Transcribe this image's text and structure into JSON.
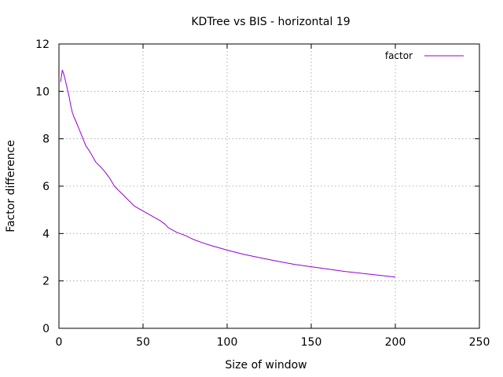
{
  "chart_data": {
    "type": "line",
    "title": "KDTree vs BIS - horizontal 19",
    "xlabel": "Size of window",
    "ylabel": "Factor difference",
    "xlim": [
      0,
      250
    ],
    "ylim": [
      0,
      12
    ],
    "xticks": [
      0,
      50,
      100,
      150,
      200,
      250
    ],
    "yticks": [
      0,
      2,
      4,
      6,
      8,
      10,
      12
    ],
    "xtick_labels": [
      "0",
      "50",
      "100",
      "150",
      "200",
      "250"
    ],
    "ytick_labels": [
      "0",
      "2",
      "4",
      "6",
      "8",
      "10",
      "12"
    ],
    "grid": true,
    "legend_position": "top-right",
    "series": [
      {
        "name": "factor",
        "color": "#9400d3",
        "x": [
          1,
          2,
          3,
          4,
          5,
          6,
          7,
          8,
          9,
          10,
          12,
          14,
          16,
          18,
          20,
          22,
          25,
          28,
          30,
          33,
          35,
          38,
          40,
          45,
          50,
          55,
          60,
          63,
          65,
          70,
          75,
          80,
          85,
          90,
          95,
          100,
          110,
          120,
          130,
          140,
          150,
          160,
          170,
          180,
          190,
          200
        ],
        "values": [
          10.4,
          10.9,
          10.7,
          10.4,
          10.1,
          9.8,
          9.4,
          9.1,
          8.9,
          8.75,
          8.4,
          8.05,
          7.7,
          7.5,
          7.25,
          7.0,
          6.8,
          6.55,
          6.35,
          6.0,
          5.85,
          5.65,
          5.5,
          5.15,
          4.95,
          4.75,
          4.55,
          4.4,
          4.25,
          4.05,
          3.92,
          3.75,
          3.62,
          3.5,
          3.4,
          3.3,
          3.12,
          2.97,
          2.83,
          2.7,
          2.6,
          2.5,
          2.4,
          2.32,
          2.24,
          2.16
        ]
      }
    ]
  }
}
